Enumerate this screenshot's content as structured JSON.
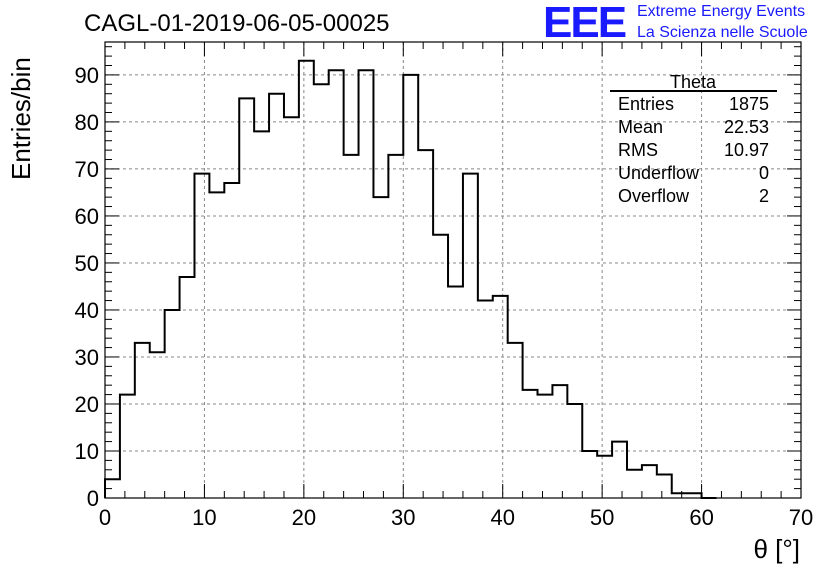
{
  "header": {
    "title": "CAGL-01-2019-06-05-00025",
    "logo_text": "EEE",
    "logo_line1": "Extreme Energy Events",
    "logo_line2": "La Scienza nelle Scuole",
    "logo_color": "#1a1aff"
  },
  "stats": {
    "title": "Theta",
    "rows": [
      {
        "label": "Entries",
        "value": "1875"
      },
      {
        "label": "Mean",
        "value": "22.53"
      },
      {
        "label": "RMS",
        "value": "10.97"
      },
      {
        "label": "Underflow",
        "value": "0"
      },
      {
        "label": "Overflow",
        "value": "2"
      }
    ]
  },
  "chart_data": {
    "type": "histogram",
    "xlabel": "θ [°]",
    "ylabel": "Entries/bin",
    "xlim": [
      0,
      70
    ],
    "ylim": [
      0,
      97
    ],
    "bin_width": 1.5,
    "x_start": 0,
    "values": [
      4,
      22,
      33,
      31,
      40,
      47,
      69,
      65,
      67,
      85,
      78,
      86,
      81,
      93,
      88,
      91,
      73,
      91,
      64,
      73,
      90,
      74,
      56,
      45,
      69,
      42,
      43,
      33,
      23,
      22,
      24,
      20,
      10,
      9,
      12,
      6,
      7,
      5,
      1,
      1,
      0
    ],
    "xticks": [
      0,
      10,
      20,
      30,
      40,
      50,
      60,
      70
    ],
    "yticks": [
      0,
      10,
      20,
      30,
      40,
      50,
      60,
      70,
      80,
      90
    ],
    "grid": true,
    "line_color": "#000000"
  }
}
